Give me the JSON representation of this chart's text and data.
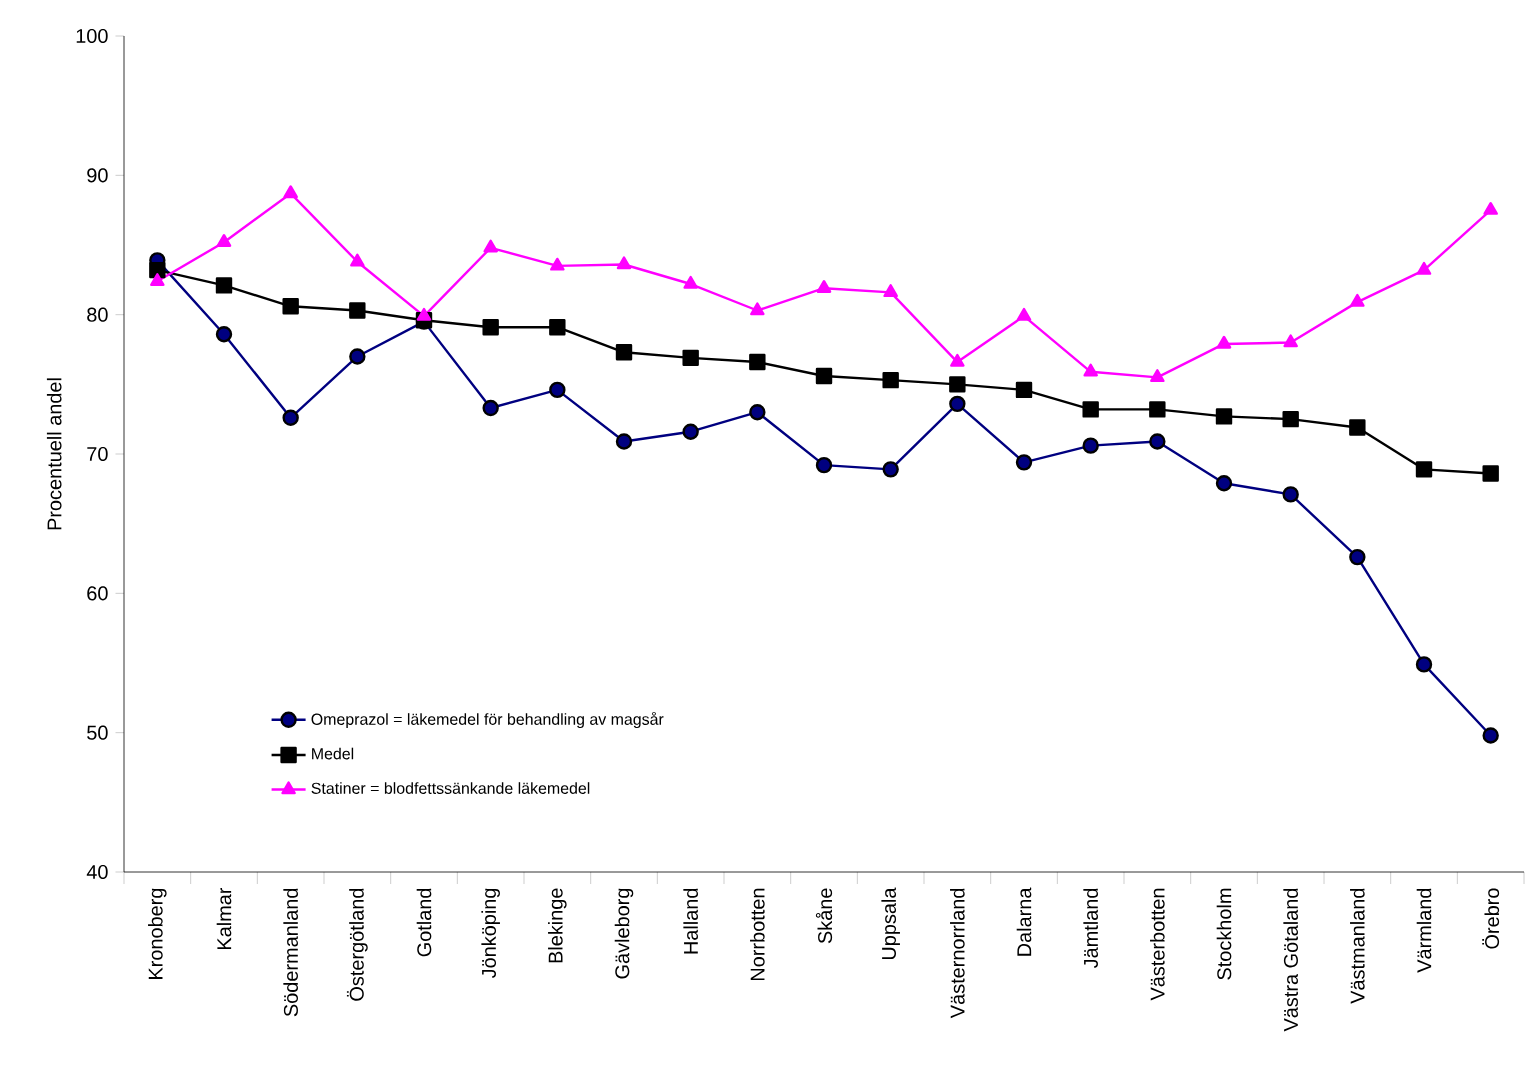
{
  "chart_data": {
    "type": "line",
    "ylabel": "Procentuell andel",
    "categories": [
      "Kronoberg",
      "Kalmar",
      "Södermanland",
      "Östergötland",
      "Gotland",
      "Jönköping",
      "Blekinge",
      "Gävleborg",
      "Halland",
      "Norrbotten",
      "Skåne",
      "Uppsala",
      "Västernorrland",
      "Dalarna",
      "Jämtland",
      "Västerbotten",
      "Stockholm",
      "Västra Götaland",
      "Västmanland",
      "Värmland",
      "Örebro"
    ],
    "series": [
      {
        "name": "Statiner = blodfettssänkande läkemedel",
        "color": "#ff00ff",
        "marker": "triangle",
        "values": [
          82.4,
          85.2,
          88.7,
          83.8,
          79.9,
          84.8,
          83.5,
          83.6,
          82.2,
          80.3,
          81.9,
          81.6,
          76.6,
          79.9,
          75.9,
          75.5,
          77.9,
          78.0,
          80.9,
          83.2,
          87.5
        ]
      },
      {
        "name": "Medel",
        "color": "#000000",
        "marker": "square",
        "values": [
          83.2,
          82.1,
          80.6,
          80.3,
          79.6,
          79.1,
          79.1,
          77.3,
          76.9,
          76.6,
          75.6,
          75.3,
          75.0,
          74.6,
          73.2,
          73.2,
          72.7,
          72.5,
          71.9,
          68.9,
          68.6
        ]
      },
      {
        "name": "Omeprazol = läkemedel för behandling av magsår",
        "color": "#000080",
        "marker": "circle",
        "values": [
          83.9,
          78.6,
          72.6,
          77.0,
          79.5,
          73.3,
          74.6,
          70.9,
          71.6,
          73.0,
          69.2,
          68.9,
          73.6,
          69.4,
          70.6,
          70.9,
          67.9,
          67.1,
          62.6,
          54.9,
          49.8
        ]
      }
    ],
    "ylim": [
      40,
      100
    ],
    "yticks": [
      40,
      50,
      60,
      70,
      80,
      90,
      100
    ],
    "grid": false,
    "legend": "bottom left",
    "line_style": "solid"
  }
}
